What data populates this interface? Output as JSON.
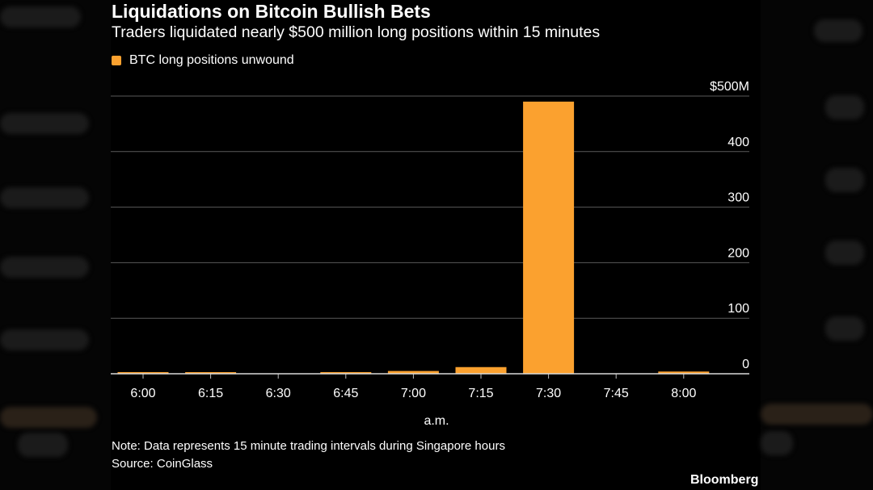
{
  "colors": {
    "background": "#000000",
    "bar": "#FBA12F",
    "grid": "#5a5a5a",
    "text": "#ffffff"
  },
  "chart_data": {
    "type": "bar",
    "title": "Liquidations on Bitcoin Bullish Bets",
    "subtitle": "Traders liquidated nearly $500 million long positions within 15 minutes",
    "categories": [
      "6:00",
      "6:15",
      "6:30",
      "6:45",
      "7:00",
      "7:15",
      "7:30",
      "7:45",
      "8:00"
    ],
    "series": [
      {
        "name": "BTC long positions unwound",
        "values": [
          3,
          1,
          0,
          3,
          5,
          12,
          490,
          0,
          4
        ]
      }
    ],
    "xlabel": "a.m.",
    "ylabel": "",
    "ylim": [
      0,
      500
    ],
    "yticks": [
      0,
      100,
      200,
      300,
      400,
      500
    ],
    "ytick_labels": [
      "0",
      "100",
      "200",
      "300",
      "400",
      "$500M"
    ],
    "y_axis_side": "right",
    "grid": true,
    "legend_position": "top-left"
  },
  "footer": {
    "note": "Note: Data represents 15 minute trading intervals during Singapore hours",
    "source": "Source: CoinGlass",
    "brand": "Bloomberg"
  }
}
